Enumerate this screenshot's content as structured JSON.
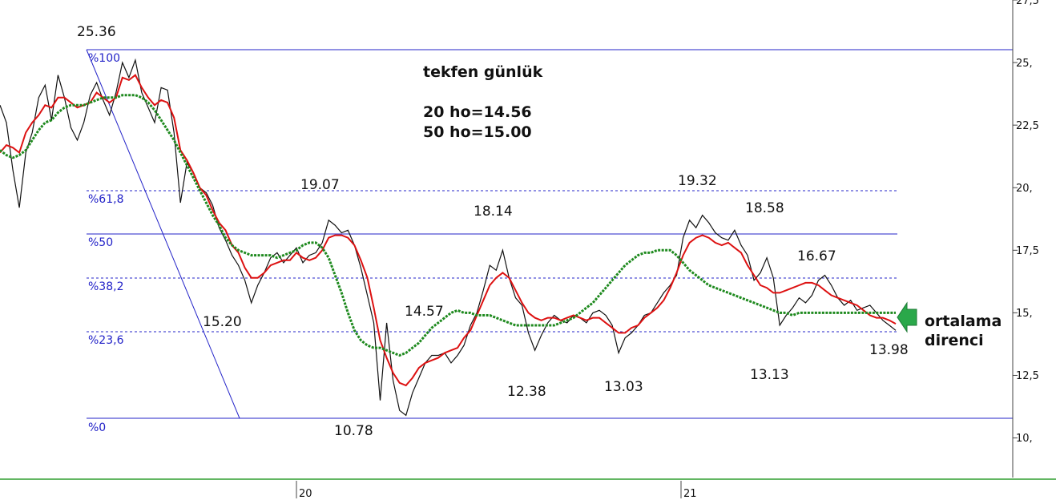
{
  "chart_data": {
    "type": "line",
    "title": "tekfen günlük",
    "subtitle_lines": [
      "20 ho=14.56",
      "50 ho=15.00"
    ],
    "ylim": [
      8.5,
      27.5
    ],
    "y_ticks": [
      "10,",
      "12,5",
      "15,",
      "17,5",
      "20,",
      "22,5",
      "25,",
      "27,5"
    ],
    "x_ticks": [
      "20",
      "21"
    ],
    "grid": false,
    "series": [
      {
        "values": [
          23.3,
          22.6,
          20.7,
          19.2,
          21.4,
          22.2,
          23.6,
          24.1,
          22.7,
          24.5,
          23.6,
          22.4,
          21.9,
          22.6,
          23.7,
          24.2,
          23.5,
          22.9,
          23.8,
          25.0,
          24.4,
          25.1,
          23.8,
          23.2,
          22.6,
          24.0,
          23.9,
          22.2,
          19.4,
          21.0,
          20.6,
          20.0,
          19.8,
          19.3,
          18.4,
          17.9,
          17.3,
          16.9,
          16.3,
          15.4,
          16.1,
          16.6,
          17.2,
          17.4,
          17.0,
          17.3,
          17.6,
          17.0,
          17.3,
          17.4,
          17.8,
          18.7,
          18.5,
          18.2,
          18.3,
          17.7,
          16.8,
          15.7,
          14.6,
          11.5,
          14.6,
          12.3,
          11.1,
          10.9,
          11.8,
          12.4,
          13.0,
          13.3,
          13.3,
          13.4,
          13.0,
          13.3,
          13.7,
          14.5,
          15.0,
          15.9,
          16.9,
          16.7,
          17.5,
          16.4,
          15.6,
          15.3,
          14.2,
          13.5,
          14.1,
          14.6,
          14.9,
          14.7,
          14.6,
          14.9,
          14.8,
          14.6,
          15.0,
          15.1,
          14.9,
          14.5,
          13.4,
          14.0,
          14.2,
          14.5,
          14.9,
          15.0,
          15.4,
          15.8,
          16.1,
          16.5,
          18.0,
          18.7,
          18.4,
          18.9,
          18.6,
          18.2,
          18.0,
          17.9,
          18.3,
          17.7,
          17.3,
          16.3,
          16.6,
          17.2,
          16.4,
          14.5,
          14.9,
          15.2,
          15.6,
          15.4,
          15.7,
          16.3,
          16.5,
          16.1,
          15.6,
          15.3,
          15.5,
          15.1,
          15.2,
          15.3,
          15.0,
          14.7,
          14.5,
          14.3
        ],
        "color": "#111111"
      },
      {
        "values": [
          21.4,
          21.7,
          21.6,
          21.4,
          22.2,
          22.6,
          22.9,
          23.3,
          23.2,
          23.6,
          23.6,
          23.4,
          23.2,
          23.3,
          23.4,
          23.8,
          23.6,
          23.4,
          23.6,
          24.4,
          24.3,
          24.5,
          24.0,
          23.6,
          23.3,
          23.5,
          23.4,
          22.8,
          21.5,
          21.1,
          20.6,
          20.0,
          19.7,
          19.1,
          18.6,
          18.3,
          17.7,
          17.4,
          16.8,
          16.4,
          16.4,
          16.6,
          16.9,
          17.0,
          17.1,
          17.1,
          17.4,
          17.2,
          17.1,
          17.2,
          17.5,
          18.0,
          18.1,
          18.1,
          18.0,
          17.7,
          17.1,
          16.4,
          15.2,
          13.9,
          13.2,
          12.6,
          12.2,
          12.1,
          12.4,
          12.8,
          13.0,
          13.1,
          13.2,
          13.4,
          13.5,
          13.6,
          14.0,
          14.3,
          14.9,
          15.5,
          16.1,
          16.4,
          16.6,
          16.4,
          15.9,
          15.4,
          15.0,
          14.8,
          14.7,
          14.8,
          14.8,
          14.7,
          14.8,
          14.9,
          14.8,
          14.7,
          14.8,
          14.8,
          14.6,
          14.4,
          14.2,
          14.2,
          14.4,
          14.5,
          14.8,
          15.0,
          15.2,
          15.5,
          16.0,
          16.6,
          17.3,
          17.8,
          18.0,
          18.1,
          18.0,
          17.8,
          17.7,
          17.8,
          17.6,
          17.4,
          16.9,
          16.5,
          16.1,
          16.0,
          15.8,
          15.8,
          15.9,
          16.0,
          16.1,
          16.2,
          16.2,
          16.1,
          15.9,
          15.7,
          15.6,
          15.5,
          15.4,
          15.3,
          15.1,
          14.9,
          14.8,
          14.8,
          14.7,
          14.56
        ],
        "color": "#dd1111"
      },
      {
        "values": [
          21.5,
          21.3,
          21.2,
          21.3,
          21.5,
          21.9,
          22.3,
          22.6,
          22.7,
          23.0,
          23.2,
          23.3,
          23.3,
          23.3,
          23.4,
          23.5,
          23.6,
          23.6,
          23.6,
          23.7,
          23.7,
          23.7,
          23.6,
          23.4,
          23.1,
          22.7,
          22.3,
          21.9,
          21.4,
          20.9,
          20.4,
          19.9,
          19.4,
          18.9,
          18.5,
          18.0,
          17.7,
          17.5,
          17.4,
          17.3,
          17.3,
          17.3,
          17.3,
          17.2,
          17.3,
          17.4,
          17.5,
          17.7,
          17.8,
          17.8,
          17.6,
          17.2,
          16.5,
          15.8,
          15.0,
          14.3,
          13.9,
          13.7,
          13.6,
          13.6,
          13.5,
          13.4,
          13.3,
          13.4,
          13.6,
          13.8,
          14.1,
          14.4,
          14.6,
          14.8,
          15.0,
          15.1,
          15.0,
          15.0,
          14.9,
          14.9,
          14.9,
          14.8,
          14.7,
          14.6,
          14.5,
          14.5,
          14.5,
          14.5,
          14.5,
          14.5,
          14.5,
          14.6,
          14.7,
          14.8,
          15.0,
          15.2,
          15.4,
          15.7,
          16.0,
          16.3,
          16.6,
          16.9,
          17.1,
          17.3,
          17.4,
          17.4,
          17.5,
          17.5,
          17.5,
          17.3,
          17.0,
          16.7,
          16.5,
          16.3,
          16.1,
          16.0,
          15.9,
          15.8,
          15.7,
          15.6,
          15.5,
          15.4,
          15.3,
          15.2,
          15.1,
          15.0,
          15.0,
          14.9,
          15.0,
          15.0,
          15.0,
          15.0,
          15.0,
          15.0,
          15.0,
          15.0,
          15.0,
          15.0,
          15.0,
          15.0,
          15.0,
          15.0,
          15.0,
          15.0
        ],
        "color": "#1f8a1f"
      }
    ],
    "fib_levels": [
      {
        "label": "%100",
        "value": 25.36
      },
      {
        "label": "%61,8",
        "value": 19.8
      },
      {
        "label": "%50",
        "value": 18.07
      },
      {
        "label": "%38,2",
        "value": 16.34
      },
      {
        "label": "%23,6",
        "value": 14.2
      },
      {
        "label": "%0",
        "value": 10.78
      }
    ],
    "annotations": [
      {
        "text": "25.36",
        "value": 25.36
      },
      {
        "text": "19.07",
        "value": 19.07
      },
      {
        "text": "18.14",
        "value": 18.14
      },
      {
        "text": "19.32",
        "value": 19.32
      },
      {
        "text": "18.58",
        "value": 18.58
      },
      {
        "text": "16.67",
        "value": 16.67
      },
      {
        "text": "15.20",
        "value": 15.2
      },
      {
        "text": "14.57",
        "value": 14.57
      },
      {
        "text": "12.38",
        "value": 12.38
      },
      {
        "text": "13.03",
        "value": 13.03
      },
      {
        "text": "13.13",
        "value": 13.13
      },
      {
        "text": "13.98",
        "value": 13.98
      },
      {
        "text": "10.78",
        "value": 10.78
      }
    ],
    "note_lines": [
      "ortalama",
      "direnci"
    ]
  },
  "colors": {
    "price": "#111111",
    "ma20": "#dd1111",
    "ma50": "#1f8a1f",
    "fib": "#2323c8",
    "arrow": "#2aa84a",
    "frame": "#2e9e2e"
  }
}
